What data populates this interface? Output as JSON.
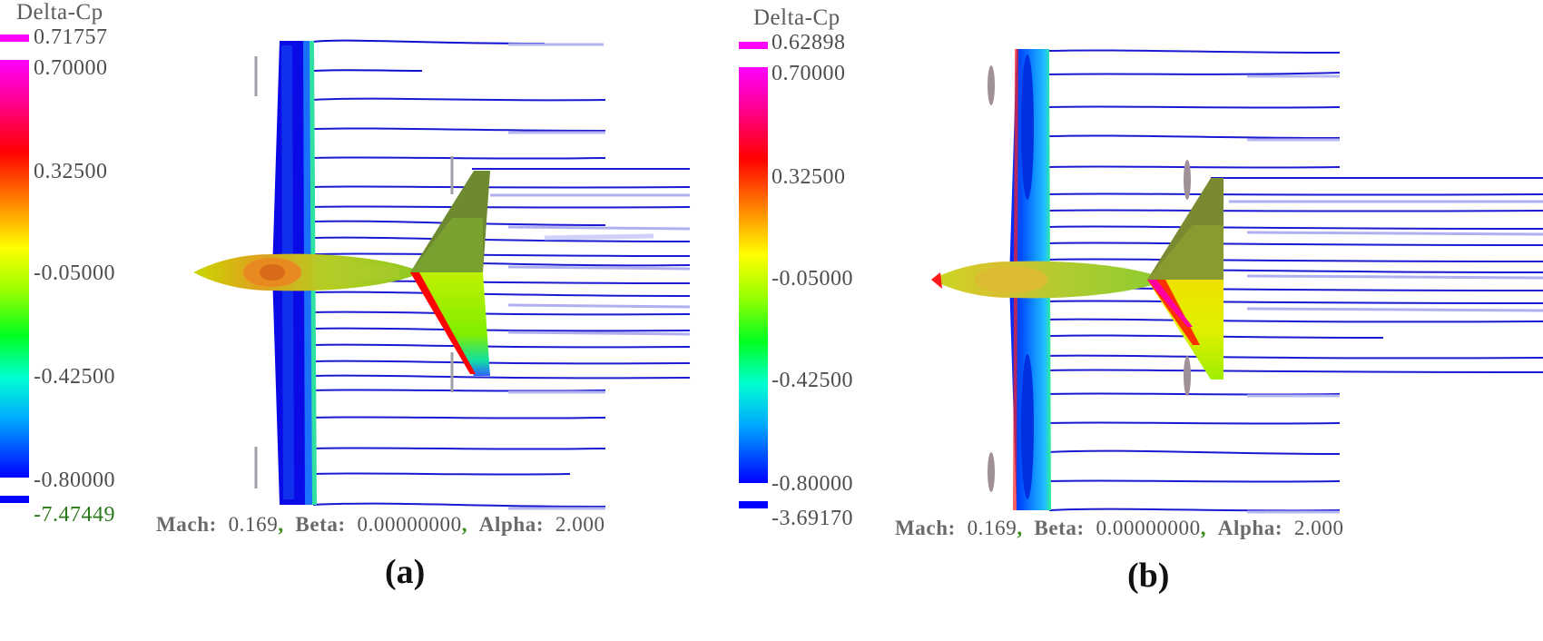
{
  "colorbar": {
    "colors": [
      "#0000ff",
      "#0038ff",
      "#0072ff",
      "#00aaff",
      "#00e2ff",
      "#00ffc4",
      "#00ff6a",
      "#40ff00",
      "#9aff00",
      "#e4ff00",
      "#ffd400",
      "#ff8c00",
      "#ff3c00",
      "#ff0000",
      "#ff0070",
      "#ff00d0",
      "#ff00ff"
    ],
    "over_color": "#ff00ff",
    "under_color": "#0000ff"
  },
  "panels": [
    {
      "id": "a",
      "colorbar_title": "Delta-Cp",
      "max_value": "0.71757",
      "tick_labels": [
        "0.70000",
        "0.32500",
        "-0.05000",
        "-0.42500",
        "-0.80000"
      ],
      "min_value": "-7.47449",
      "condition": {
        "mach_label": "Mach:",
        "mach_value": "0.169",
        "beta_label": "Beta:",
        "beta_value": "0.00000000",
        "alpha_label": "Alpha:",
        "alpha_value": "2.000",
        "separator": ","
      },
      "label": "(a)"
    },
    {
      "id": "b",
      "colorbar_title": "Delta-Cp",
      "max_value": "0.62898",
      "tick_labels": [
        "0.70000",
        "0.32500",
        "-0.05000",
        "-0.42500",
        "-0.80000"
      ],
      "min_value": "-3.69170",
      "condition": {
        "mach_label": "Mach:",
        "mach_value": "0.169",
        "beta_label": "Beta:",
        "beta_value": "0.00000000",
        "alpha_label": "Alpha:",
        "alpha_value": "2.000",
        "separator": ","
      },
      "label": "(b)"
    }
  ]
}
